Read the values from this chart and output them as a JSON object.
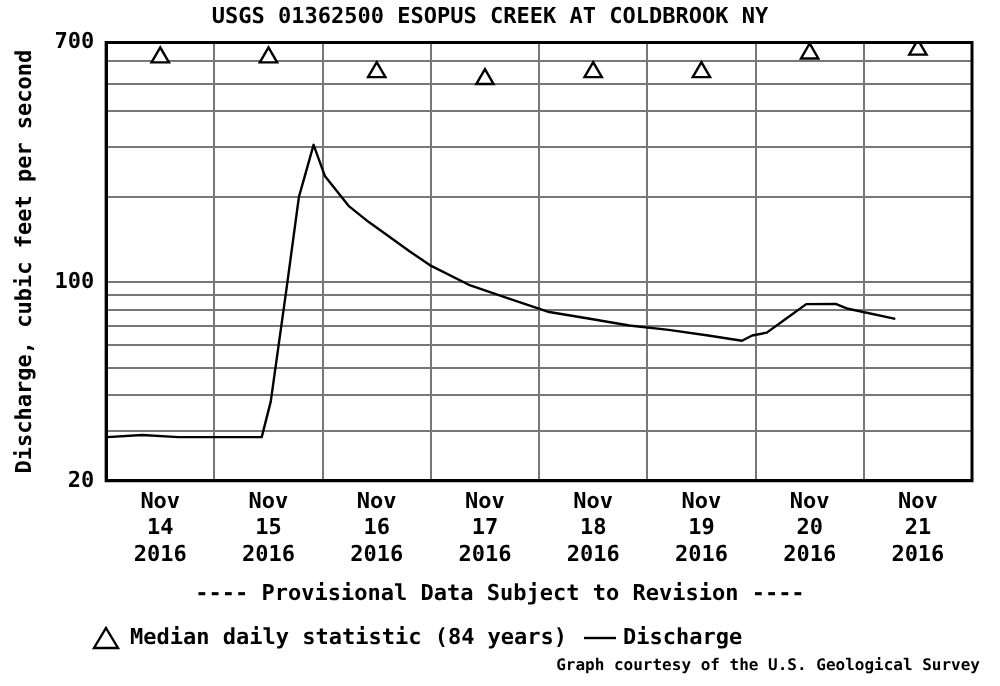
{
  "chart_data": {
    "type": "line",
    "title": "USGS 01362500 ESOPUS CREEK AT COLDBROOK NY",
    "ylabel": "Discharge, cubic feet per second",
    "annotations": [
      "---- Provisional Data Subject to Revision ----",
      "Graph courtesy of the U.S. Geological Survey"
    ],
    "log": "y",
    "grid": true,
    "legend": "bottom",
    "xlim": [
      "2016-11-14T00:00",
      "2016-11-22T00:00"
    ],
    "xticks": [
      {
        "value": "2016-11-14T00:00",
        "label": null
      },
      {
        "value": "2016-11-14T12:00",
        "label": "Nov 14 2016"
      },
      {
        "value": "2016-11-15T00:00",
        "label": null
      },
      {
        "value": "2016-11-15T12:00",
        "label": "Nov 15 2016"
      },
      {
        "value": "2016-11-16T00:00",
        "label": null
      },
      {
        "value": "2016-11-16T12:00",
        "label": "Nov 16 2016"
      },
      {
        "value": "2016-11-17T00:00",
        "label": null
      },
      {
        "value": "2016-11-17T12:00",
        "label": "Nov 17 2016"
      },
      {
        "value": "2016-11-18T00:00",
        "label": null
      },
      {
        "value": "2016-11-18T12:00",
        "label": "Nov 18 2016"
      },
      {
        "value": "2016-11-19T00:00",
        "label": null
      },
      {
        "value": "2016-11-19T12:00",
        "label": "Nov 19 2016"
      },
      {
        "value": "2016-11-20T00:00",
        "label": null
      },
      {
        "value": "2016-11-20T12:00",
        "label": "Nov 20 2016"
      },
      {
        "value": "2016-11-21T00:00",
        "label": null
      },
      {
        "value": "2016-11-21T12:00",
        "label": "Nov 21 2016"
      },
      {
        "value": "2016-11-22T00:00",
        "label": null
      }
    ],
    "ylim": [
      20,
      700
    ],
    "yticks": [
      20,
      {
        "value": 30,
        "label": null
      },
      {
        "value": 40,
        "label": null
      },
      {
        "value": 50,
        "label": null
      },
      {
        "value": 60,
        "label": null
      },
      {
        "value": 70,
        "label": null
      },
      {
        "value": 80,
        "label": null
      },
      {
        "value": 90,
        "label": null
      },
      100,
      {
        "value": 200,
        "label": null
      },
      {
        "value": 300,
        "label": null
      },
      {
        "value": 400,
        "label": null
      },
      {
        "value": 500,
        "label": null
      },
      {
        "value": 600,
        "label": null
      },
      700
    ],
    "series": [
      {
        "name": "Median daily statistic (84 years)",
        "type": "scatter",
        "marker": "triangle",
        "color": "#000000",
        "x": [
          "2016-11-14T12:00",
          "2016-11-15T12:00",
          "2016-11-16T12:00",
          "2016-11-17T12:00",
          "2016-11-18T12:00",
          "2016-11-19T12:00",
          "2016-11-20T12:00",
          "2016-11-21T12:00"
        ],
        "values": [
          620,
          620,
          550,
          520,
          550,
          550,
          640,
          660
        ]
      },
      {
        "name": "Discharge",
        "color": "#000000",
        "x": [
          "2016-11-14T00:15",
          "2016-11-14T08:00",
          "2016-11-14T16:00",
          "2016-11-15T00:00",
          "2016-11-15T10:30",
          "2016-11-15T12:30",
          "2016-11-15T16:00",
          "2016-11-15T18:45",
          "2016-11-15T22:00",
          "2016-11-16T00:30",
          "2016-11-16T05:45",
          "2016-11-16T10:15",
          "2016-11-16T14:30",
          "2016-11-16T19:30",
          "2016-11-16T23:45",
          "2016-11-17T08:45",
          "2016-11-17T17:30",
          "2016-11-18T02:15",
          "2016-11-18T11:15",
          "2016-11-18T20:00",
          "2016-11-19T04:45",
          "2016-11-19T13:30",
          "2016-11-19T21:00",
          "2016-11-19T23:15",
          "2016-11-20T02:30",
          "2016-11-20T06:45",
          "2016-11-20T11:15",
          "2016-11-20T17:45",
          "2016-11-20T20:30",
          "2016-11-21T07:00"
        ],
        "values": [
          28.5,
          29,
          28.5,
          28.5,
          28.5,
          38,
          95,
          200,
          305,
          237,
          186,
          163,
          146,
          128,
          115,
          97.5,
          87.5,
          78.6,
          74.4,
          70.5,
          68,
          65,
          62.3,
          65,
          66.5,
          74.4,
          83.8,
          84,
          80.7,
          74.4
        ]
      }
    ]
  }
}
